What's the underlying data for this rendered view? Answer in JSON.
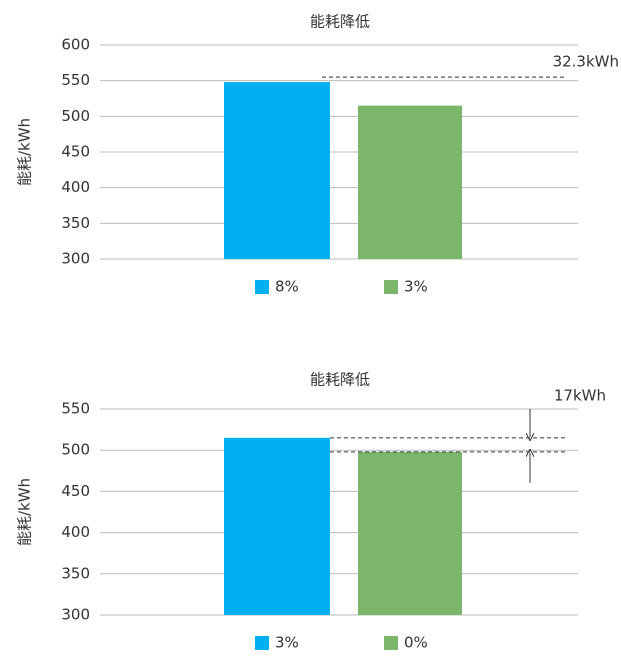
{
  "chart_data": [
    {
      "type": "bar",
      "title": "能耗降低",
      "y_label": "能耗/kWh",
      "series": [
        {
          "name": "8%",
          "color": "#00b0f0",
          "values": [
            548
          ]
        },
        {
          "name": "3%",
          "color": "#7cb66a",
          "values": [
            515
          ]
        }
      ],
      "ylim": [
        300,
        600
      ],
      "yticks": [
        300,
        350,
        400,
        450,
        500,
        550,
        600
      ],
      "grid": true,
      "annotation": "32.3kWh"
    },
    {
      "type": "bar",
      "title": "能耗降低",
      "y_label": "能耗/kWh",
      "series": [
        {
          "name": "3%",
          "color": "#00b0f0",
          "values": [
            515
          ]
        },
        {
          "name": "0%",
          "color": "#7cb66a",
          "values": [
            498
          ]
        }
      ],
      "ylim": [
        300,
        550
      ],
      "yticks": [
        300,
        350,
        400,
        450,
        500,
        550
      ],
      "grid": true,
      "annotation": "17kWh"
    }
  ]
}
